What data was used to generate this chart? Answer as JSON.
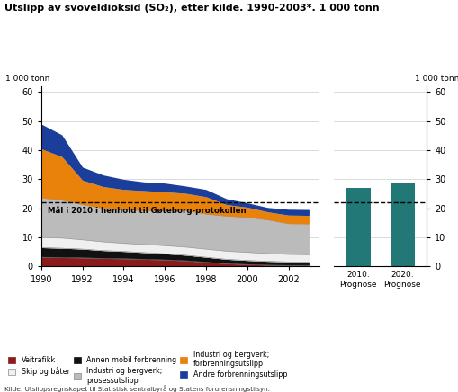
{
  "title": "Utslipp av svoveldioksid (SO₂), etter kilde. 1990-2003*. 1 000 tonn",
  "ylabel_left": "1 000 tonn",
  "ylabel_right": "1 000 tonn",
  "source": "Kilde: Utslippsregnskapet til Statistisk sentralbyrå og Statens forurensningstilsyn.",
  "years": [
    1990,
    1991,
    1992,
    1993,
    1994,
    1995,
    1996,
    1997,
    1998,
    1999,
    2000,
    2001,
    2002,
    2003
  ],
  "veitrafikk": [
    3.2,
    3.1,
    3.0,
    2.8,
    2.7,
    2.5,
    2.3,
    2.0,
    1.5,
    1.0,
    0.7,
    0.5,
    0.4,
    0.4
  ],
  "annen_mobil": [
    3.3,
    3.2,
    3.0,
    2.7,
    2.5,
    2.3,
    2.1,
    1.9,
    1.7,
    1.5,
    1.4,
    1.3,
    1.2,
    1.1
  ],
  "skip_og_bater": [
    3.5,
    3.5,
    3.2,
    3.0,
    2.8,
    2.8,
    2.8,
    2.8,
    2.8,
    2.8,
    2.8,
    2.7,
    2.6,
    2.6
  ],
  "industri_prosess": [
    13.5,
    13.0,
    12.0,
    11.5,
    11.5,
    11.5,
    12.0,
    12.5,
    12.0,
    12.0,
    12.0,
    11.5,
    10.5,
    10.5
  ],
  "industri_forbrenning": [
    17.0,
    15.0,
    8.5,
    7.5,
    7.0,
    7.0,
    6.5,
    6.0,
    6.0,
    4.0,
    3.5,
    2.8,
    3.0,
    3.0
  ],
  "andre_forbrenning": [
    8.5,
    7.5,
    4.5,
    4.0,
    3.5,
    3.0,
    3.0,
    2.5,
    2.5,
    2.0,
    1.5,
    1.5,
    2.0,
    2.0
  ],
  "colors": {
    "veitrafikk": "#8B1A1A",
    "skip_og_bater": "#F0F0F0",
    "annen_mobil": "#111111",
    "industri_prosess": "#BBBBBB",
    "industri_forbrenning": "#E8820A",
    "andre_forbrenning": "#1A3E9A"
  },
  "bar_categories": [
    "2010.\nPrognose",
    "2020.\nPrognose"
  ],
  "bar_values": [
    27.0,
    29.0
  ],
  "bar_color": "#227777",
  "goteborg_line": 22,
  "goteborg_label": "Mål i 2010 i henhold til Gøteborg-protokollen",
  "ylim": [
    0,
    62
  ],
  "yticks": [
    0,
    10,
    20,
    30,
    40,
    50,
    60
  ],
  "legend_items": [
    {
      "label": "Veitrafikk",
      "color": "#8B1A1A",
      "edgecolor": "#8B1A1A"
    },
    {
      "label": "Skip og båter",
      "color": "#F0F0F0",
      "edgecolor": "#888888"
    },
    {
      "label": "Annen mobil forbrenning",
      "color": "#111111",
      "edgecolor": "#111111"
    },
    {
      "label": "Industri og bergverk;\nprosessutslipp",
      "color": "#BBBBBB",
      "edgecolor": "#888888"
    },
    {
      "label": "Industri og bergverk;\nforbrenningsutslipp",
      "color": "#E8820A",
      "edgecolor": "#E8820A"
    },
    {
      "label": "Andre forbrenningsutslipp",
      "color": "#1A3E9A",
      "edgecolor": "#1A3E9A"
    }
  ]
}
